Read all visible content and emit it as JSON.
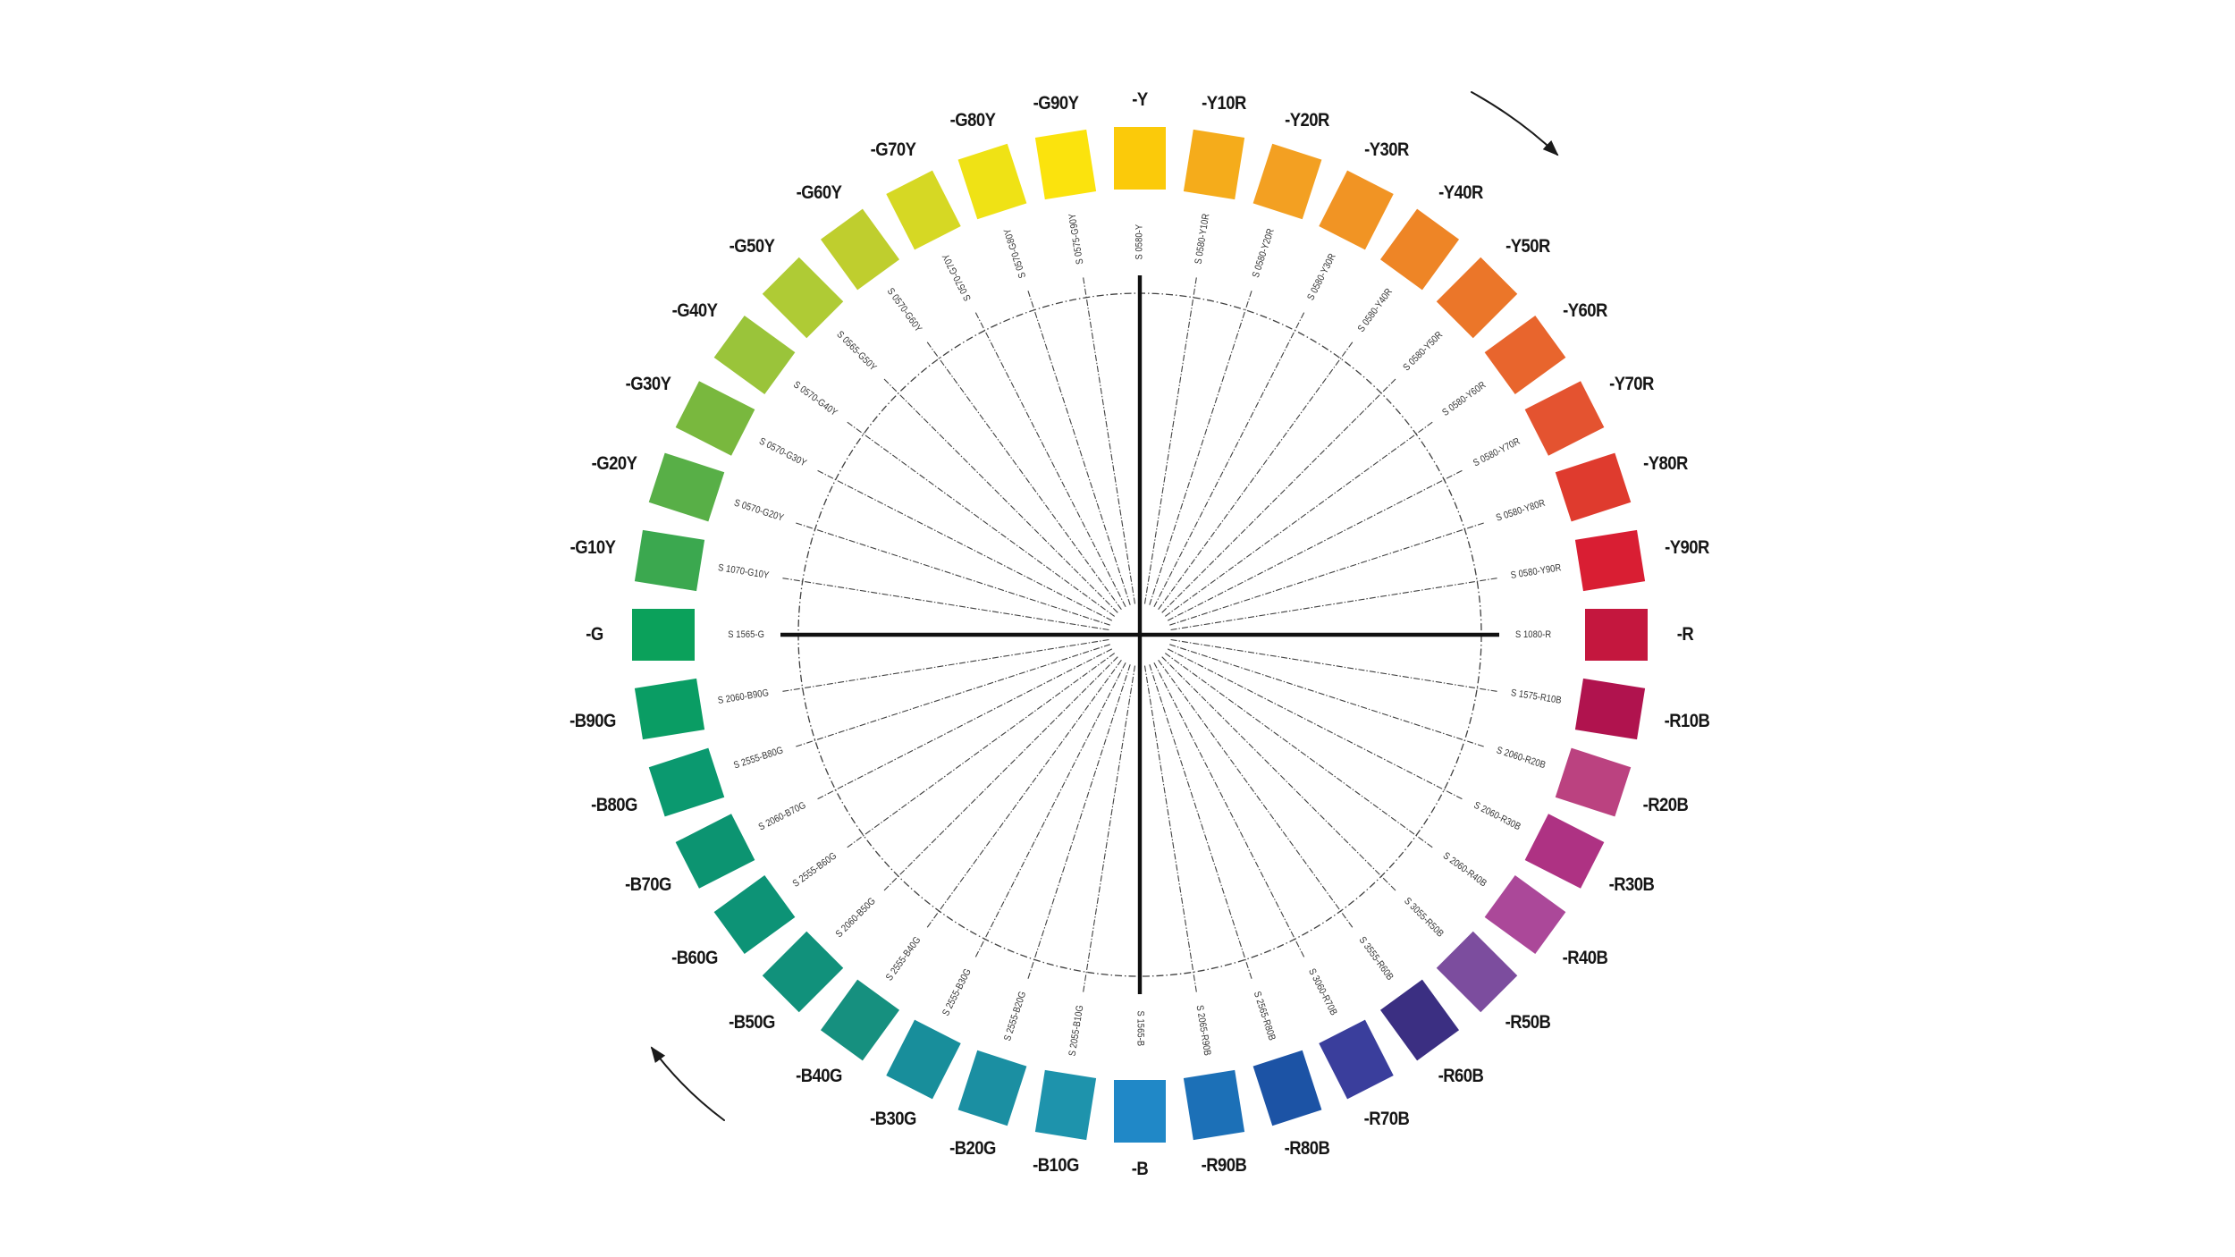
{
  "diagram": {
    "type": "ncs-colour-circle",
    "colors": {
      "background": "#ffffff",
      "line": "#404040",
      "axis": "#101010",
      "label_text": "#161616",
      "code_text": "#333333",
      "arrow": "#1a1a1a"
    },
    "rotation_arrows": {
      "top_right_icon": "clockwise-arrow",
      "bottom_left_icon": "clockwise-arrow"
    }
  },
  "wheel": {
    "segments": [
      {
        "label": "-Y",
        "code": "S 0580-Y",
        "color": "#FBCA0A"
      },
      {
        "label": "-Y10R",
        "code": "S 0580-Y10R",
        "color": "#F5AC1B"
      },
      {
        "label": "-Y20R",
        "code": "S 0580-Y20R",
        "color": "#F3A022"
      },
      {
        "label": "-Y30R",
        "code": "S 0580-Y30R",
        "color": "#F19424"
      },
      {
        "label": "-Y40R",
        "code": "S 0580-Y40R",
        "color": "#EE8526"
      },
      {
        "label": "-Y50R",
        "code": "S 0580-Y50R",
        "color": "#EB7629"
      },
      {
        "label": "-Y60R",
        "code": "S 0580-Y60R",
        "color": "#E8652D"
      },
      {
        "label": "-Y70R",
        "code": "S 0580-Y70R",
        "color": "#E45330"
      },
      {
        "label": "-Y80R",
        "code": "S 0580-Y80R",
        "color": "#DF3B2E"
      },
      {
        "label": "-Y90R",
        "code": "S 0580-Y90R",
        "color": "#D91E33"
      },
      {
        "label": "-R",
        "code": "S 1080-R",
        "color": "#C4173E"
      },
      {
        "label": "-R10B",
        "code": "S 1575-R10B",
        "color": "#B0134E"
      },
      {
        "label": "-R20B",
        "code": "S 2060-R20B",
        "color": "#BB4280"
      },
      {
        "label": "-R30B",
        "code": "S 2060-R30B",
        "color": "#AE3283"
      },
      {
        "label": "-R40B",
        "code": "S 2060-R40B",
        "color": "#AB4899"
      },
      {
        "label": "-R50B",
        "code": "S 3055-R50B",
        "color": "#7C4D9E"
      },
      {
        "label": "-R60B",
        "code": "S 3555-R60B",
        "color": "#3B2F82"
      },
      {
        "label": "-R70B",
        "code": "S 3060-R70B",
        "color": "#3A3E9C"
      },
      {
        "label": "-R80B",
        "code": "S 2565-R80B",
        "color": "#1C53A5"
      },
      {
        "label": "-R90B",
        "code": "S 2065-R90B",
        "color": "#1C70B7"
      },
      {
        "label": "-B",
        "code": "S 1565-B",
        "color": "#2088C7"
      },
      {
        "label": "-B10G",
        "code": "S 2055-B10G",
        "color": "#1E93AC"
      },
      {
        "label": "-B20G",
        "code": "S 2555-B20G",
        "color": "#1B8FA2"
      },
      {
        "label": "-B30G",
        "code": "S 2555-B30G",
        "color": "#188E9B"
      },
      {
        "label": "-B40G",
        "code": "S 2555-B40G",
        "color": "#16907F"
      },
      {
        "label": "-B50G",
        "code": "S 2060-B50G",
        "color": "#11917B"
      },
      {
        "label": "-B60G",
        "code": "S 2555-B60G",
        "color": "#0D9376"
      },
      {
        "label": "-B70G",
        "code": "S 2060-B70G",
        "color": "#0C9471"
      },
      {
        "label": "-B80G",
        "code": "S 2555-B80G",
        "color": "#0B996F"
      },
      {
        "label": "-B90G",
        "code": "S 2060-B90G",
        "color": "#0A9D64"
      },
      {
        "label": "-G",
        "code": "S 1565-G",
        "color": "#0BA15B"
      },
      {
        "label": "-G10Y",
        "code": "S 1070-G10Y",
        "color": "#3BA84F"
      },
      {
        "label": "-G20Y",
        "code": "S 0570-G20Y",
        "color": "#58AF47"
      },
      {
        "label": "-G30Y",
        "code": "S 0570-G30Y",
        "color": "#79B83E"
      },
      {
        "label": "-G40Y",
        "code": "S 0570-G40Y",
        "color": "#9AC43A"
      },
      {
        "label": "-G50Y",
        "code": "S 0565-G50Y",
        "color": "#AFCB35"
      },
      {
        "label": "-G60Y",
        "code": "S 0570-G60Y",
        "color": "#BFCE2E"
      },
      {
        "label": "-G70Y",
        "code": "S 0570-G70Y",
        "color": "#D6D824"
      },
      {
        "label": "-G80Y",
        "code": "S 0570-G80Y",
        "color": "#EFE215"
      },
      {
        "label": "-G90Y",
        "code": "S 0575-G90Y",
        "color": "#FBE30D"
      }
    ]
  }
}
